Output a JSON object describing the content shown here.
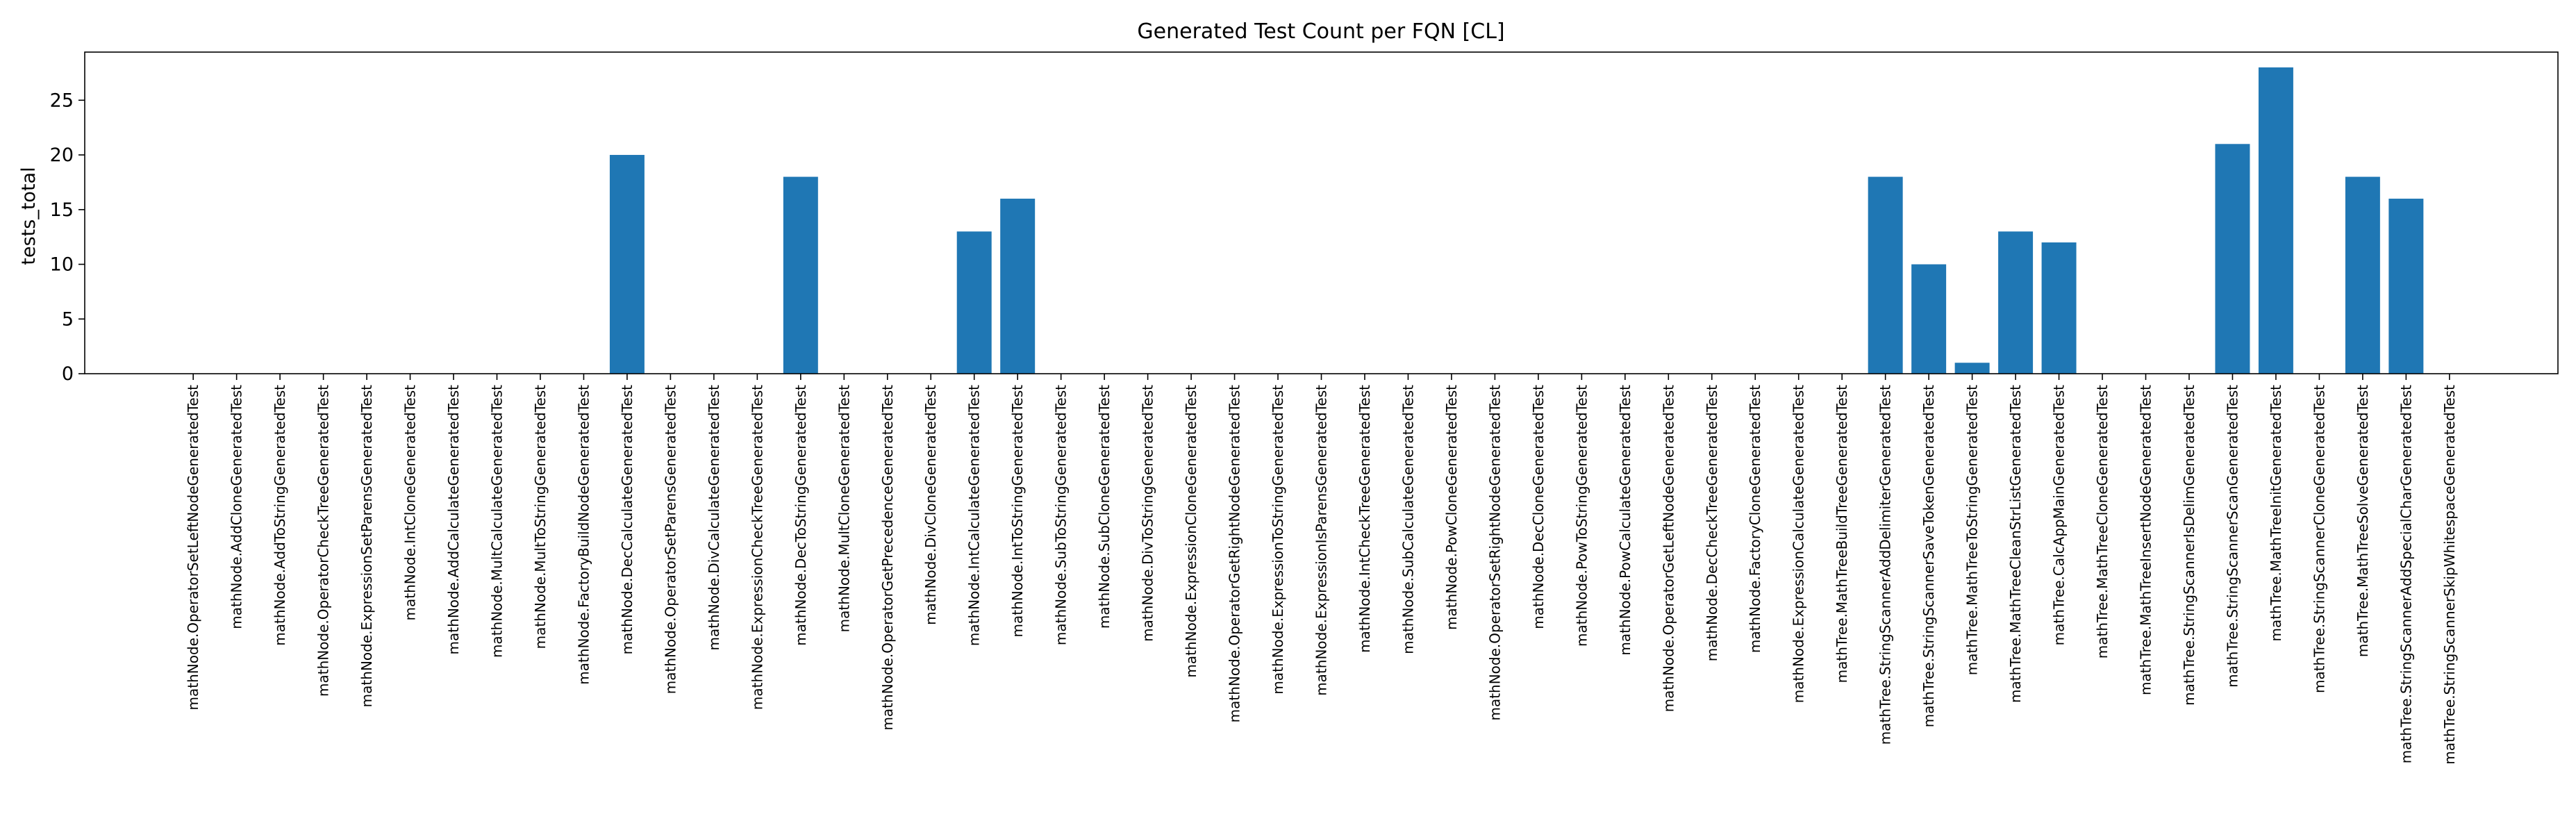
{
  "chart_data": {
    "type": "bar",
    "title": "Generated Test Count per FQN [CL]",
    "xlabel": "",
    "ylabel": "tests_total",
    "ylim": [
      0,
      29.4
    ],
    "yticks": [
      0,
      5,
      10,
      15,
      20,
      25
    ],
    "grid": false,
    "legend": "none",
    "bar_color": "#1f77b4",
    "categories": [
      "mathNode.OperatorSetLeftNodeGeneratedTest",
      "mathNode.AddCloneGeneratedTest",
      "mathNode.AddToStringGeneratedTest",
      "mathNode.OperatorCheckTreeGeneratedTest",
      "mathNode.ExpressionSetParensGeneratedTest",
      "mathNode.IntCloneGeneratedTest",
      "mathNode.AddCalculateGeneratedTest",
      "mathNode.MultCalculateGeneratedTest",
      "mathNode.MultToStringGeneratedTest",
      "mathNode.FactoryBuildNodeGeneratedTest",
      "mathNode.DecCalculateGeneratedTest",
      "mathNode.OperatorSetParensGeneratedTest",
      "mathNode.DivCalculateGeneratedTest",
      "mathNode.ExpressionCheckTreeGeneratedTest",
      "mathNode.DecToStringGeneratedTest",
      "mathNode.MultCloneGeneratedTest",
      "mathNode.OperatorGetPrecedenceGeneratedTest",
      "mathNode.DivCloneGeneratedTest",
      "mathNode.IntCalculateGeneratedTest",
      "mathNode.IntToStringGeneratedTest",
      "mathNode.SubToStringGeneratedTest",
      "mathNode.SubCloneGeneratedTest",
      "mathNode.DivToStringGeneratedTest",
      "mathNode.ExpressionCloneGeneratedTest",
      "mathNode.OperatorGetRightNodeGeneratedTest",
      "mathNode.ExpressionToStringGeneratedTest",
      "mathNode.ExpressionIsParensGeneratedTest",
      "mathNode.IntCheckTreeGeneratedTest",
      "mathNode.SubCalculateGeneratedTest",
      "mathNode.PowCloneGeneratedTest",
      "mathNode.OperatorSetRightNodeGeneratedTest",
      "mathNode.DecCloneGeneratedTest",
      "mathNode.PowToStringGeneratedTest",
      "mathNode.PowCalculateGeneratedTest",
      "mathNode.OperatorGetLeftNodeGeneratedTest",
      "mathNode.DecCheckTreeGeneratedTest",
      "mathNode.FactoryCloneGeneratedTest",
      "mathNode.ExpressionCalculateGeneratedTest",
      "mathTree.MathTreeBuildTreeGeneratedTest",
      "mathTree.StringScannerAddDelimiterGeneratedTest",
      "mathTree.StringScannerSaveTokenGeneratedTest",
      "mathTree.MathTreeToStringGeneratedTest",
      "mathTree.MathTreeCleanStrListGeneratedTest",
      "mathTree.CalcAppMainGeneratedTest",
      "mathTree.MathTreeCloneGeneratedTest",
      "mathTree.MathTreeInsertNodeGeneratedTest",
      "mathTree.StringScannerIsDelimGeneratedTest",
      "mathTree.StringScannerScanGeneratedTest",
      "mathTree.MathTreeInitGeneratedTest",
      "mathTree.StringScannerCloneGeneratedTest",
      "mathTree.MathTreeSolveGeneratedTest",
      "mathTree.StringScannerAddSpecialCharGeneratedTest",
      "mathTree.StringScannerSkipWhitespaceGeneratedTest"
    ],
    "values": [
      0,
      0,
      0,
      0,
      0,
      0,
      0,
      0,
      0,
      0,
      20,
      0,
      0,
      0,
      18,
      0,
      0,
      0,
      13,
      16,
      0,
      0,
      0,
      0,
      0,
      0,
      0,
      0,
      0,
      0,
      0,
      0,
      0,
      0,
      0,
      0,
      0,
      0,
      0,
      18,
      10,
      1,
      13,
      12,
      0,
      0,
      0,
      21,
      28,
      0,
      18,
      16,
      0
    ]
  }
}
